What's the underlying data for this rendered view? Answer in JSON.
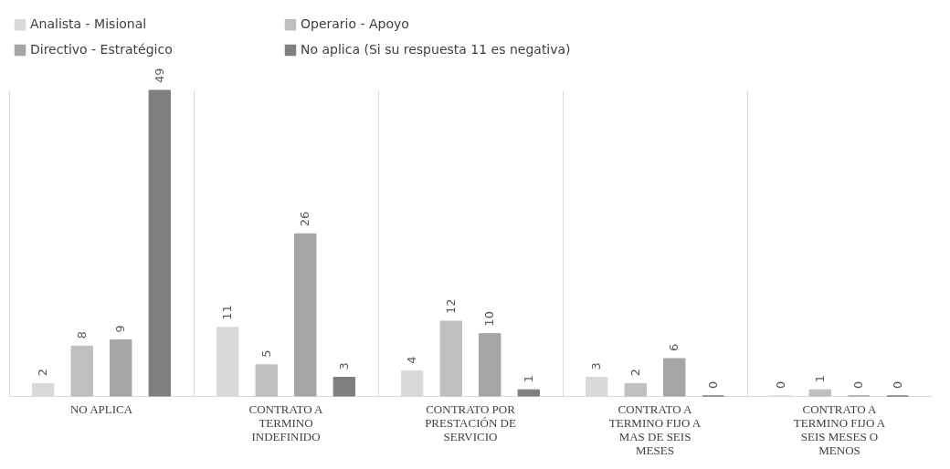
{
  "chart_data": {
    "type": "bar",
    "categories": [
      "NO APLICA",
      "CONTRATO A TERMINO INDEFINIDO",
      "CONTRATO POR PRESTACIÓN DE SERVICIO",
      "CONTRATO A TERMINO FIJO A MAS DE SEIS MESES",
      "CONTRATO A TERMINO FIJO A SEIS MESES O MENOS"
    ],
    "series": [
      {
        "name": "Analista - Misional",
        "color": "#d9d9d9",
        "values": [
          2,
          11,
          4,
          3,
          0
        ]
      },
      {
        "name": "Operario - Apoyo",
        "color": "#bfbfbf",
        "values": [
          8,
          5,
          12,
          2,
          1
        ]
      },
      {
        "name": "Directivo - Estratégico",
        "color": "#a5a5a5",
        "values": [
          9,
          26,
          10,
          6,
          0
        ]
      },
      {
        "name": "No aplica (Si su respuesta 11 es negativa)",
        "color": "#7f7f7f",
        "values": [
          49,
          3,
          1,
          0,
          0
        ]
      }
    ],
    "data_labels": true,
    "legend": "top",
    "grid": "x",
    "tick_labels": "x"
  }
}
